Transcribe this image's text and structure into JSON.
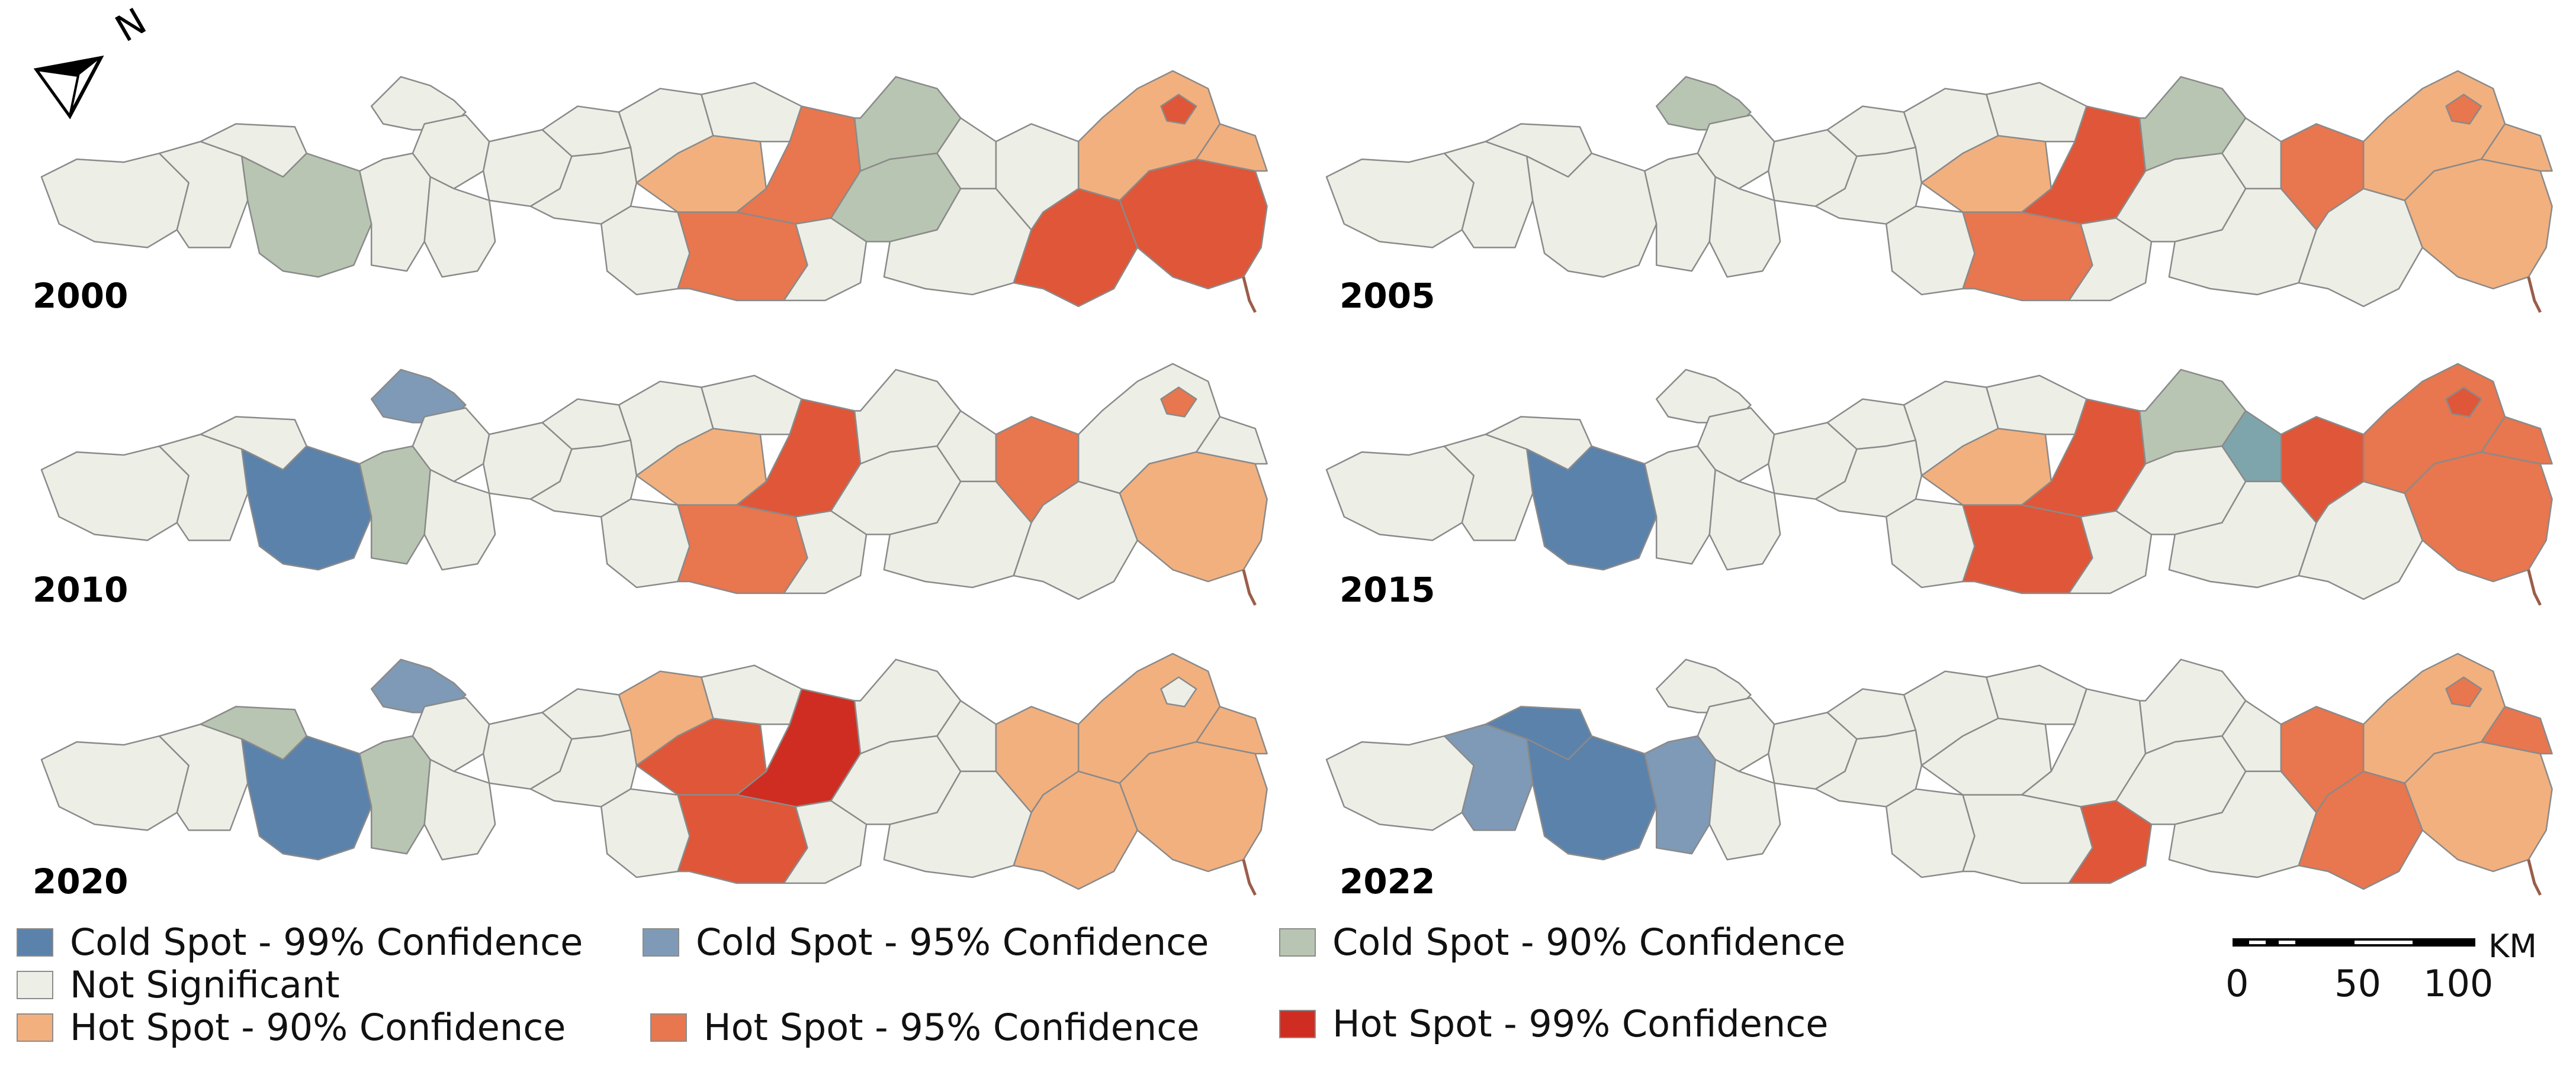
{
  "colors": {
    "cold99": "#5b82ab",
    "cold95": "#7f9ab6",
    "cold90": "#b8c5b2",
    "cold_teal": "#7fa5ac",
    "not_significant": "#edeee6",
    "hot90": "#f2b07e",
    "hot95": "#e8764e",
    "hot99": "#e05638",
    "hot99_dark": "#cf2d22",
    "outline": "#8a8a8a"
  },
  "north_arrow": {
    "label": "N",
    "icon": "north-arrow-icon"
  },
  "panels": [
    {
      "year": "2000"
    },
    {
      "year": "2005"
    },
    {
      "year": "2010"
    },
    {
      "year": "2015"
    },
    {
      "year": "2020"
    },
    {
      "year": "2022"
    }
  ],
  "legend": [
    {
      "label": "Cold Spot - 99% Confidence",
      "color_key": "cold99"
    },
    {
      "label": "Cold Spot - 95% Confidence",
      "color_key": "cold95"
    },
    {
      "label": "Cold Spot - 90% Confidence",
      "color_key": "cold90"
    },
    {
      "label": "Not Significant",
      "color_key": "not_significant"
    },
    {
      "label": "Hot Spot - 90% Confidence",
      "color_key": "hot90"
    },
    {
      "label": "Hot Spot - 95% Confidence",
      "color_key": "hot95"
    },
    {
      "label": "Hot Spot - 99% Confidence",
      "color_key": "hot99_dark"
    }
  ],
  "scale_bar": {
    "unit": "KM",
    "ticks": [
      "0",
      "50",
      "100"
    ]
  }
}
